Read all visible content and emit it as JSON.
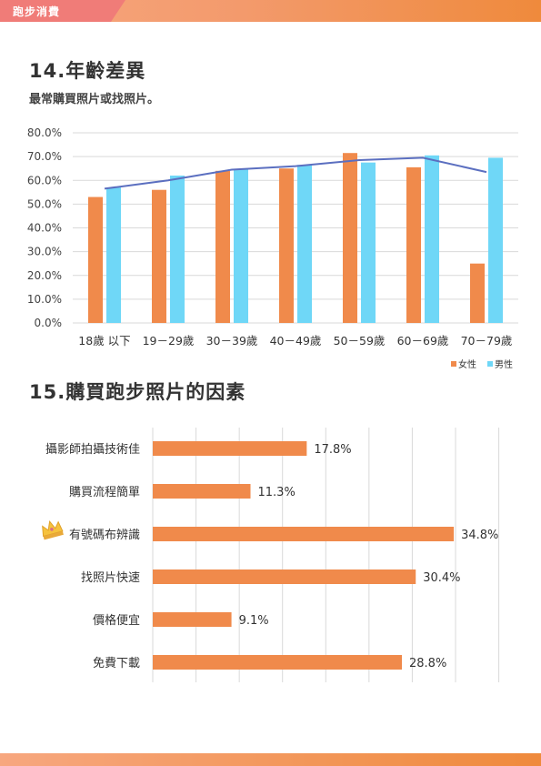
{
  "header": {
    "tab_label": "跑步消費"
  },
  "section14": {
    "heading": "14.年齡差異",
    "subtitle": "最常購買照片或找照片。"
  },
  "section15": {
    "heading": "15.購買跑步照片的因素"
  },
  "colors": {
    "female": "#f08a4b",
    "male": "#6fd7f7",
    "line": "#5b6fc0",
    "bar2": "#f08a4b",
    "accent": "#f07c78"
  },
  "chart_data": [
    {
      "type": "bar",
      "categories": [
        "18歲 以下",
        "19－29歲",
        "30－39歲",
        "40－49歲",
        "50－59歲",
        "60－69歲",
        "70－79歲"
      ],
      "series": [
        {
          "name": "女性",
          "values": [
            53,
            56,
            64,
            65,
            71.5,
            65.5,
            25
          ]
        },
        {
          "name": "男性",
          "values": [
            57,
            62,
            64.5,
            66.5,
            67.5,
            70.5,
            69.5
          ]
        }
      ],
      "line": {
        "values": [
          56.5,
          60,
          64.5,
          66,
          68.5,
          69.5,
          63.5
        ]
      },
      "ylim": [
        0,
        80
      ],
      "yticks": [
        "0.0%",
        "10.0%",
        "20.0%",
        "30.0%",
        "40.0%",
        "50.0%",
        "60.0%",
        "70.0%",
        "80.0%"
      ],
      "grid": true,
      "legend_position": "bottom-right"
    },
    {
      "type": "bar",
      "orientation": "horizontal",
      "categories": [
        "攝影師拍攝技術佳",
        "購買流程簡單",
        "有號碼布辨識",
        "找照片快速",
        "價格便宜",
        "免費下載"
      ],
      "values": [
        17.8,
        11.3,
        34.8,
        30.4,
        9.1,
        28.8
      ],
      "value_labels": [
        "17.8%",
        "11.3%",
        "34.8%",
        "30.4%",
        "9.1%",
        "28.8%"
      ],
      "xlim": [
        0,
        45
      ],
      "grid": true,
      "highlight_icon": "crown-icon"
    }
  ]
}
